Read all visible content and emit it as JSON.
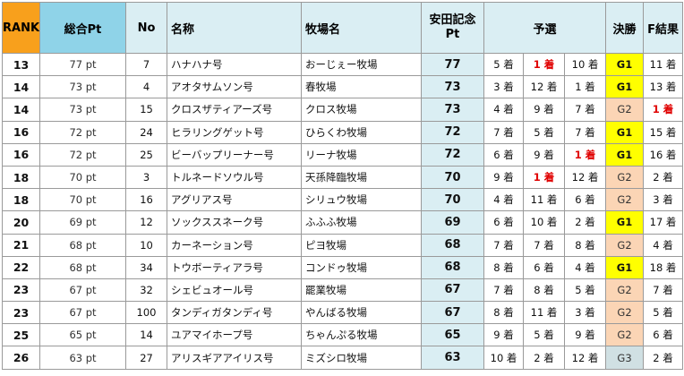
{
  "headers": {
    "rank": "RANK",
    "total_pt": "総合Pt",
    "no": "No",
    "name": "名称",
    "farm": "牧場名",
    "yasuda_line1": "安田記念",
    "yasuda_line2": "Pt",
    "qualifying": "予選",
    "final": "決勝",
    "f_result": "F結果"
  },
  "colors": {
    "rank_header": "#f8a01c",
    "pt_header": "#8fd3e8",
    "header": "#daeef3",
    "win_red": "#e00000",
    "g1": "#ffff00",
    "g2": "#fbd5b5",
    "g3": "#d0e0e3"
  },
  "rows": [
    {
      "rank": "13",
      "pt": "77 pt",
      "no": "7",
      "name": "ハナハナ号",
      "farm": "おーじぇー牧場",
      "ypt": "77",
      "q": [
        "5 着",
        "1 着",
        "10 着"
      ],
      "red": [
        false,
        true,
        false
      ],
      "grade": "G1",
      "fres": "11 着",
      "fred": false
    },
    {
      "rank": "14",
      "pt": "73 pt",
      "no": "4",
      "name": "アオタサムソン号",
      "farm": "春牧場",
      "ypt": "73",
      "q": [
        "3 着",
        "12 着",
        "1 着"
      ],
      "red": [
        false,
        false,
        false
      ],
      "grade": "G1",
      "fres": "13 着",
      "fred": false
    },
    {
      "rank": "14",
      "pt": "73 pt",
      "no": "15",
      "name": "クロスザティアーズ号",
      "farm": "クロス牧場",
      "ypt": "73",
      "q": [
        "4 着",
        "9 着",
        "7 着"
      ],
      "red": [
        false,
        false,
        false
      ],
      "grade": "G2",
      "fres": "1 着",
      "fred": true
    },
    {
      "rank": "16",
      "pt": "72 pt",
      "no": "24",
      "name": "ヒラリングゲット号",
      "farm": "ひらくわ牧場",
      "ypt": "72",
      "q": [
        "7 着",
        "5 着",
        "7 着"
      ],
      "red": [
        false,
        false,
        false
      ],
      "grade": "G1",
      "fres": "15 着",
      "fred": false
    },
    {
      "rank": "16",
      "pt": "72 pt",
      "no": "25",
      "name": "ビーバップリーナー号",
      "farm": "リーナ牧場",
      "ypt": "72",
      "q": [
        "6 着",
        "9 着",
        "1 着"
      ],
      "red": [
        false,
        false,
        true
      ],
      "grade": "G1",
      "fres": "16 着",
      "fred": false
    },
    {
      "rank": "18",
      "pt": "70 pt",
      "no": "3",
      "name": "トルネードソウル号",
      "farm": "天孫降臨牧場",
      "ypt": "70",
      "q": [
        "9 着",
        "1 着",
        "12 着"
      ],
      "red": [
        false,
        true,
        false
      ],
      "grade": "G2",
      "fres": "2 着",
      "fred": false
    },
    {
      "rank": "18",
      "pt": "70 pt",
      "no": "16",
      "name": "アグリアス号",
      "farm": "シリュウ牧場",
      "ypt": "70",
      "q": [
        "4 着",
        "11 着",
        "6 着"
      ],
      "red": [
        false,
        false,
        false
      ],
      "grade": "G2",
      "fres": "3 着",
      "fred": false
    },
    {
      "rank": "20",
      "pt": "69 pt",
      "no": "12",
      "name": "ソックススネーク号",
      "farm": "ふふふ牧場",
      "ypt": "69",
      "q": [
        "6 着",
        "10 着",
        "2 着"
      ],
      "red": [
        false,
        false,
        false
      ],
      "grade": "G1",
      "fres": "17 着",
      "fred": false
    },
    {
      "rank": "21",
      "pt": "68 pt",
      "no": "10",
      "name": "カーネーション号",
      "farm": "ピヨ牧場",
      "ypt": "68",
      "q": [
        "7 着",
        "7 着",
        "8 着"
      ],
      "red": [
        false,
        false,
        false
      ],
      "grade": "G2",
      "fres": "4 着",
      "fred": false
    },
    {
      "rank": "22",
      "pt": "68 pt",
      "no": "34",
      "name": "トウボーティアラ号",
      "farm": "コンドゥ牧場",
      "ypt": "68",
      "q": [
        "8 着",
        "6 着",
        "4 着"
      ],
      "red": [
        false,
        false,
        false
      ],
      "grade": "G1",
      "fres": "18 着",
      "fred": false
    },
    {
      "rank": "23",
      "pt": "67 pt",
      "no": "32",
      "name": "シェビュオール号",
      "farm": "罷業牧場",
      "ypt": "67",
      "q": [
        "7 着",
        "8 着",
        "5 着"
      ],
      "red": [
        false,
        false,
        false
      ],
      "grade": "G2",
      "fres": "7 着",
      "fred": false
    },
    {
      "rank": "23",
      "pt": "67 pt",
      "no": "100",
      "name": "タンディガタンディ号",
      "farm": "やんばる牧場",
      "ypt": "67",
      "q": [
        "8 着",
        "11 着",
        "3 着"
      ],
      "red": [
        false,
        false,
        false
      ],
      "grade": "G2",
      "fres": "5 着",
      "fred": false
    },
    {
      "rank": "25",
      "pt": "65 pt",
      "no": "14",
      "name": "ユアマイホープ号",
      "farm": "ちゃんぷる牧場",
      "ypt": "65",
      "q": [
        "9 着",
        "5 着",
        "9 着"
      ],
      "red": [
        false,
        false,
        false
      ],
      "grade": "G2",
      "fres": "6 着",
      "fred": false
    },
    {
      "rank": "26",
      "pt": "63 pt",
      "no": "27",
      "name": "アリスギアアイリス号",
      "farm": "ミズシロ牧場",
      "ypt": "63",
      "q": [
        "10 着",
        "2 着",
        "12 着"
      ],
      "red": [
        false,
        false,
        false
      ],
      "grade": "G3",
      "fres": "2 着",
      "fred": false
    }
  ]
}
